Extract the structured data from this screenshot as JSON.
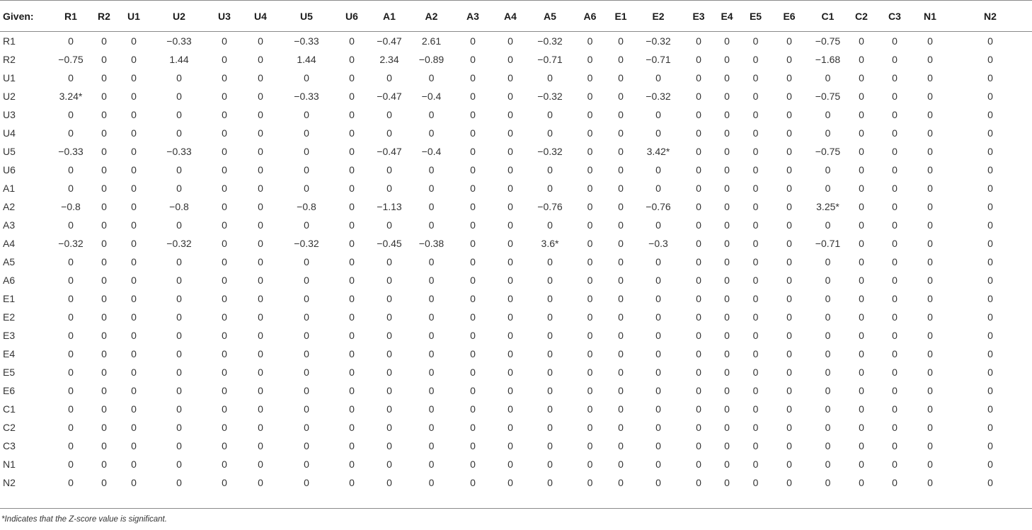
{
  "table": {
    "corner_label": "Given:",
    "columns": [
      "R1",
      "R2",
      "U1",
      "U2",
      "U3",
      "U4",
      "U5",
      "U6",
      "A1",
      "A2",
      "A3",
      "A4",
      "A5",
      "A6",
      "E1",
      "E2",
      "E3",
      "E4",
      "E5",
      "E6",
      "C1",
      "C2",
      "C3",
      "N1",
      "N2"
    ],
    "rows": [
      {
        "label": "R1",
        "values": [
          "0",
          "0",
          "0",
          "−0.33",
          "0",
          "0",
          "−0.33",
          "0",
          "−0.47",
          "2.61",
          "0",
          "0",
          "−0.32",
          "0",
          "0",
          "−0.32",
          "0",
          "0",
          "0",
          "0",
          "−0.75",
          "0",
          "0",
          "0",
          "0"
        ]
      },
      {
        "label": "R2",
        "values": [
          "−0.75",
          "0",
          "0",
          "1.44",
          "0",
          "0",
          "1.44",
          "0",
          "2.34",
          "−0.89",
          "0",
          "0",
          "−0.71",
          "0",
          "0",
          "−0.71",
          "0",
          "0",
          "0",
          "0",
          "−1.68",
          "0",
          "0",
          "0",
          "0"
        ]
      },
      {
        "label": "U1",
        "values": [
          "0",
          "0",
          "0",
          "0",
          "0",
          "0",
          "0",
          "0",
          "0",
          "0",
          "0",
          "0",
          "0",
          "0",
          "0",
          "0",
          "0",
          "0",
          "0",
          "0",
          "0",
          "0",
          "0",
          "0",
          "0"
        ]
      },
      {
        "label": "U2",
        "values": [
          "3.24*",
          "0",
          "0",
          "0",
          "0",
          "0",
          "−0.33",
          "0",
          "−0.47",
          "−0.4",
          "0",
          "0",
          "−0.32",
          "0",
          "0",
          "−0.32",
          "0",
          "0",
          "0",
          "0",
          "−0.75",
          "0",
          "0",
          "0",
          "0"
        ]
      },
      {
        "label": "U3",
        "values": [
          "0",
          "0",
          "0",
          "0",
          "0",
          "0",
          "0",
          "0",
          "0",
          "0",
          "0",
          "0",
          "0",
          "0",
          "0",
          "0",
          "0",
          "0",
          "0",
          "0",
          "0",
          "0",
          "0",
          "0",
          "0"
        ]
      },
      {
        "label": "U4",
        "values": [
          "0",
          "0",
          "0",
          "0",
          "0",
          "0",
          "0",
          "0",
          "0",
          "0",
          "0",
          "0",
          "0",
          "0",
          "0",
          "0",
          "0",
          "0",
          "0",
          "0",
          "0",
          "0",
          "0",
          "0",
          "0"
        ]
      },
      {
        "label": "U5",
        "values": [
          "−0.33",
          "0",
          "0",
          "−0.33",
          "0",
          "0",
          "0",
          "0",
          "−0.47",
          "−0.4",
          "0",
          "0",
          "−0.32",
          "0",
          "0",
          "3.42*",
          "0",
          "0",
          "0",
          "0",
          "−0.75",
          "0",
          "0",
          "0",
          "0"
        ]
      },
      {
        "label": "U6",
        "values": [
          "0",
          "0",
          "0",
          "0",
          "0",
          "0",
          "0",
          "0",
          "0",
          "0",
          "0",
          "0",
          "0",
          "0",
          "0",
          "0",
          "0",
          "0",
          "0",
          "0",
          "0",
          "0",
          "0",
          "0",
          "0"
        ]
      },
      {
        "label": "A1",
        "values": [
          "0",
          "0",
          "0",
          "0",
          "0",
          "0",
          "0",
          "0",
          "0",
          "0",
          "0",
          "0",
          "0",
          "0",
          "0",
          "0",
          "0",
          "0",
          "0",
          "0",
          "0",
          "0",
          "0",
          "0",
          "0"
        ]
      },
      {
        "label": "A2",
        "values": [
          "−0.8",
          "0",
          "0",
          "−0.8",
          "0",
          "0",
          "−0.8",
          "0",
          "−1.13",
          "0",
          "0",
          "0",
          "−0.76",
          "0",
          "0",
          "−0.76",
          "0",
          "0",
          "0",
          "0",
          "3.25*",
          "0",
          "0",
          "0",
          "0"
        ]
      },
      {
        "label": "A3",
        "values": [
          "0",
          "0",
          "0",
          "0",
          "0",
          "0",
          "0",
          "0",
          "0",
          "0",
          "0",
          "0",
          "0",
          "0",
          "0",
          "0",
          "0",
          "0",
          "0",
          "0",
          "0",
          "0",
          "0",
          "0",
          "0"
        ]
      },
      {
        "label": "A4",
        "values": [
          "−0.32",
          "0",
          "0",
          "−0.32",
          "0",
          "0",
          "−0.32",
          "0",
          "−0.45",
          "−0.38",
          "0",
          "0",
          "3.6*",
          "0",
          "0",
          "−0.3",
          "0",
          "0",
          "0",
          "0",
          "−0.71",
          "0",
          "0",
          "0",
          "0"
        ]
      },
      {
        "label": "A5",
        "values": [
          "0",
          "0",
          "0",
          "0",
          "0",
          "0",
          "0",
          "0",
          "0",
          "0",
          "0",
          "0",
          "0",
          "0",
          "0",
          "0",
          "0",
          "0",
          "0",
          "0",
          "0",
          "0",
          "0",
          "0",
          "0"
        ]
      },
      {
        "label": "A6",
        "values": [
          "0",
          "0",
          "0",
          "0",
          "0",
          "0",
          "0",
          "0",
          "0",
          "0",
          "0",
          "0",
          "0",
          "0",
          "0",
          "0",
          "0",
          "0",
          "0",
          "0",
          "0",
          "0",
          "0",
          "0",
          "0"
        ]
      },
      {
        "label": "E1",
        "values": [
          "0",
          "0",
          "0",
          "0",
          "0",
          "0",
          "0",
          "0",
          "0",
          "0",
          "0",
          "0",
          "0",
          "0",
          "0",
          "0",
          "0",
          "0",
          "0",
          "0",
          "0",
          "0",
          "0",
          "0",
          "0"
        ]
      },
      {
        "label": "E2",
        "values": [
          "0",
          "0",
          "0",
          "0",
          "0",
          "0",
          "0",
          "0",
          "0",
          "0",
          "0",
          "0",
          "0",
          "0",
          "0",
          "0",
          "0",
          "0",
          "0",
          "0",
          "0",
          "0",
          "0",
          "0",
          "0"
        ]
      },
      {
        "label": "E3",
        "values": [
          "0",
          "0",
          "0",
          "0",
          "0",
          "0",
          "0",
          "0",
          "0",
          "0",
          "0",
          "0",
          "0",
          "0",
          "0",
          "0",
          "0",
          "0",
          "0",
          "0",
          "0",
          "0",
          "0",
          "0",
          "0"
        ]
      },
      {
        "label": "E4",
        "values": [
          "0",
          "0",
          "0",
          "0",
          "0",
          "0",
          "0",
          "0",
          "0",
          "0",
          "0",
          "0",
          "0",
          "0",
          "0",
          "0",
          "0",
          "0",
          "0",
          "0",
          "0",
          "0",
          "0",
          "0",
          "0"
        ]
      },
      {
        "label": "E5",
        "values": [
          "0",
          "0",
          "0",
          "0",
          "0",
          "0",
          "0",
          "0",
          "0",
          "0",
          "0",
          "0",
          "0",
          "0",
          "0",
          "0",
          "0",
          "0",
          "0",
          "0",
          "0",
          "0",
          "0",
          "0",
          "0"
        ]
      },
      {
        "label": "E6",
        "values": [
          "0",
          "0",
          "0",
          "0",
          "0",
          "0",
          "0",
          "0",
          "0",
          "0",
          "0",
          "0",
          "0",
          "0",
          "0",
          "0",
          "0",
          "0",
          "0",
          "0",
          "0",
          "0",
          "0",
          "0",
          "0"
        ]
      },
      {
        "label": "C1",
        "values": [
          "0",
          "0",
          "0",
          "0",
          "0",
          "0",
          "0",
          "0",
          "0",
          "0",
          "0",
          "0",
          "0",
          "0",
          "0",
          "0",
          "0",
          "0",
          "0",
          "0",
          "0",
          "0",
          "0",
          "0",
          "0"
        ]
      },
      {
        "label": "C2",
        "values": [
          "0",
          "0",
          "0",
          "0",
          "0",
          "0",
          "0",
          "0",
          "0",
          "0",
          "0",
          "0",
          "0",
          "0",
          "0",
          "0",
          "0",
          "0",
          "0",
          "0",
          "0",
          "0",
          "0",
          "0",
          "0"
        ]
      },
      {
        "label": "C3",
        "values": [
          "0",
          "0",
          "0",
          "0",
          "0",
          "0",
          "0",
          "0",
          "0",
          "0",
          "0",
          "0",
          "0",
          "0",
          "0",
          "0",
          "0",
          "0",
          "0",
          "0",
          "0",
          "0",
          "0",
          "0",
          "0"
        ]
      },
      {
        "label": "N1",
        "values": [
          "0",
          "0",
          "0",
          "0",
          "0",
          "0",
          "0",
          "0",
          "0",
          "0",
          "0",
          "0",
          "0",
          "0",
          "0",
          "0",
          "0",
          "0",
          "0",
          "0",
          "0",
          "0",
          "0",
          "0",
          "0"
        ]
      },
      {
        "label": "N2",
        "values": [
          "0",
          "0",
          "0",
          "0",
          "0",
          "0",
          "0",
          "0",
          "0",
          "0",
          "0",
          "0",
          "0",
          "0",
          "0",
          "0",
          "0",
          "0",
          "0",
          "0",
          "0",
          "0",
          "0",
          "0",
          "0"
        ]
      }
    ]
  },
  "footnote": "*Indicates that the Z-score value is significant."
}
